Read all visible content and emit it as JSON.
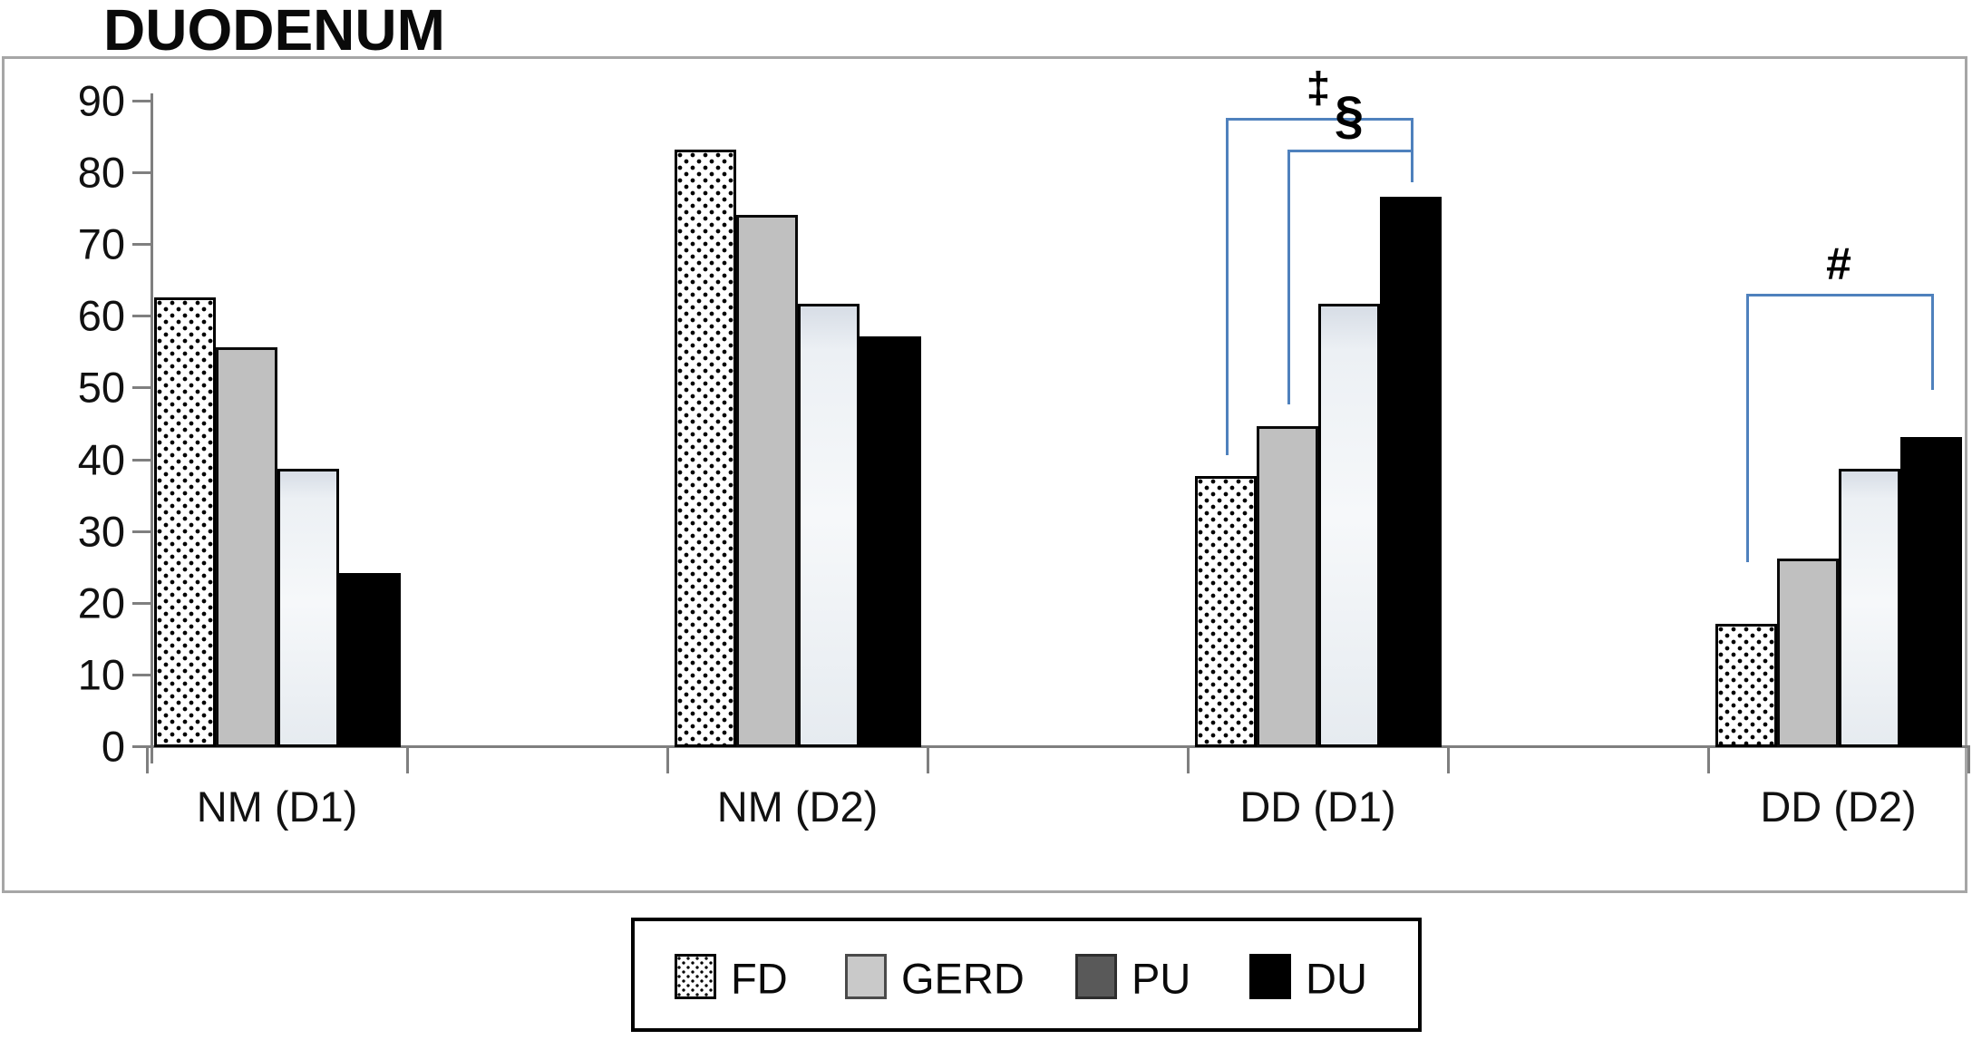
{
  "title": "DUODENUM",
  "colors": {
    "bracket_blue": "#4f81bd",
    "axis_gray": "#7f7f7f",
    "frame_gray": "#a6a6a6",
    "gerd_gray": "#c0c0c0",
    "pu_pale": "#eef1f5",
    "legend_pu_dark": "#595959",
    "bar_black": "#000000"
  },
  "chart_data": {
    "type": "bar",
    "title": "DUODENUM",
    "categories": [
      "NM (D1)",
      "NM (D2)",
      "DD (D1)",
      "DD (D2)"
    ],
    "series": [
      {
        "name": "FD",
        "swatch": "dotted",
        "values": [
          62.5,
          83,
          37.5,
          17
        ]
      },
      {
        "name": "GERD",
        "swatch": "light-gray",
        "values": [
          55.5,
          74,
          44.5,
          26
        ]
      },
      {
        "name": "PU",
        "swatch": "dark-gray",
        "values": [
          38.5,
          61.5,
          61.5,
          38.5
        ]
      },
      {
        "name": "DU",
        "swatch": "black",
        "values": [
          24,
          57,
          76.5,
          43
        ]
      }
    ],
    "ylim": [
      0,
      90
    ],
    "ytick_step": 10,
    "ytick_labels": [
      "0",
      "10",
      "20",
      "30",
      "40",
      "50",
      "60",
      "70",
      "80",
      "90"
    ],
    "grid": false,
    "legend_position": "bottom",
    "annotations": [
      {
        "symbol": "‡",
        "category": "DD (D1)",
        "from_series": "FD",
        "to_series": "DU",
        "top_value": 87.5,
        "from_leg_end": 40.5,
        "to_leg_end": 78.5
      },
      {
        "symbol": "§",
        "category": "DD (D1)",
        "from_series": "GERD",
        "to_series": "DU",
        "top_value": 83,
        "from_leg_end": 47.5,
        "to_leg_end": 79
      },
      {
        "symbol": "#",
        "category": "DD (D2)",
        "from_series": "FD",
        "to_series": "DU",
        "top_value": 63,
        "from_leg_end": 25.5,
        "to_leg_end": 49.5
      }
    ]
  },
  "legend": {
    "items": [
      {
        "label": "FD"
      },
      {
        "label": "GERD"
      },
      {
        "label": "PU"
      },
      {
        "label": "DU"
      }
    ]
  }
}
